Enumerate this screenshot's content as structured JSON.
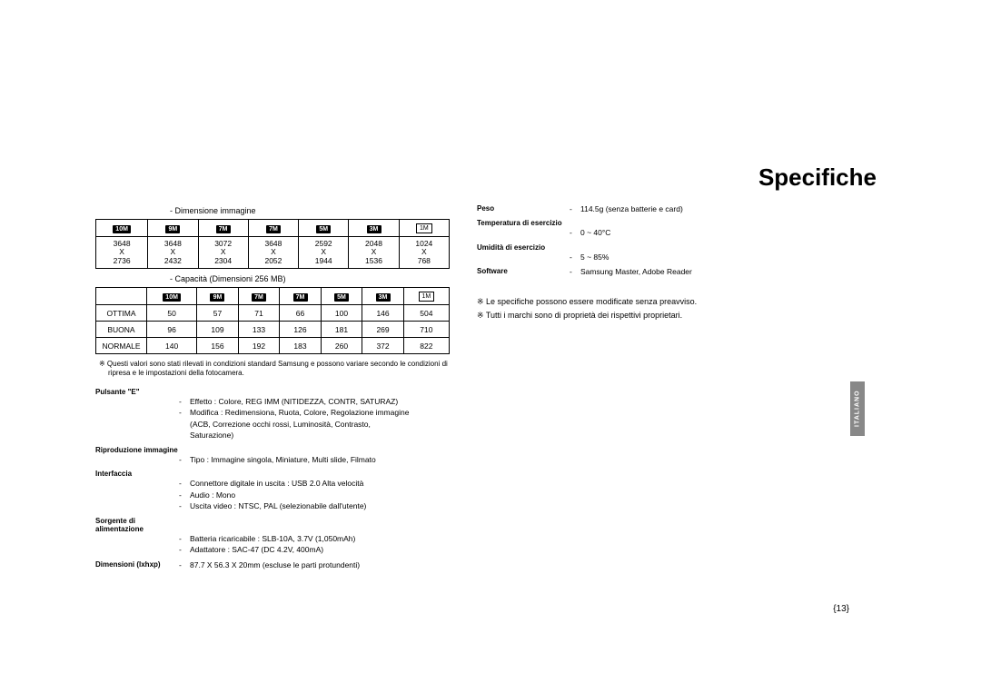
{
  "title": "Specifiche",
  "side_tab": "ITALIANO",
  "page_number": "{13}",
  "table1": {
    "heading": "-   Dimensione immagine",
    "headers": [
      "10M",
      "9M",
      "7M",
      "7M",
      "5M",
      "3M",
      "1M"
    ],
    "rows": [
      [
        "3648",
        "3648",
        "3072",
        "3648",
        "2592",
        "2048",
        "1024"
      ],
      [
        "X",
        "X",
        "X",
        "X",
        "X",
        "X",
        "X"
      ],
      [
        "2736",
        "2432",
        "2304",
        "2052",
        "1944",
        "1536",
        "768"
      ]
    ]
  },
  "table2": {
    "heading": "-   Capacità (Dimensioni 256 MB)",
    "headers": [
      "",
      "10M",
      "9M",
      "7M",
      "7M",
      "5M",
      "3M",
      "1M"
    ],
    "rows": [
      [
        "OTTIMA",
        "50",
        "57",
        "71",
        "66",
        "100",
        "146",
        "504"
      ],
      [
        "BUONA",
        "96",
        "109",
        "133",
        "126",
        "181",
        "269",
        "710"
      ],
      [
        "NORMALE",
        "140",
        "156",
        "192",
        "183",
        "260",
        "372",
        "822"
      ]
    ]
  },
  "table_note": "※ Questi valori sono stati rilevati in condizioni standard Samsung e possono variare secondo le condizioni di ripresa e le impostazioni della fotocamera.",
  "left_specs": [
    {
      "label": "Pulsante \"E\"",
      "lines": [
        "Effetto  :  Colore, REG IMM (NITIDEZZA, CONTR, SATURAZ)",
        "Modifica  :  Redimensiona,  Ruota, Colore, Regolazione immagine",
        "               (ACB,  Correzione occhi rossi,  Luminosità,  Contrasto,",
        "               Saturazione)"
      ]
    },
    {
      "label": "Riproduzione immagine",
      "lines": [
        "Tipo  :  Immagine singola, Miniature, Multi slide, Filmato"
      ]
    },
    {
      "label": "Interfaccia",
      "lines": [
        "Connettore digitale in uscita  :  USB  2.0  Alta velocità",
        "Audio  :  Mono",
        "Uscita video  :  NTSC,  PAL  (selezionabile dall'utente)"
      ]
    },
    {
      "label": "Sorgente di alimentazione",
      "lines": [
        "Batteria ricaricabile  :  SLB-10A,  3.7V  (1,050mAh)",
        "Adattatore  :  SAC-47 (DC  4.2V,  400mA)"
      ]
    },
    {
      "label": "Dimensioni  (lxhxp)",
      "lines": [
        "87.7  X  56.3  X  20mm  (escluse le parti protundenti)"
      ]
    }
  ],
  "right_specs": [
    {
      "label": "Peso",
      "lines": [
        "114.5g  (senza batterie e card)"
      ]
    },
    {
      "label": "Temperatura di esercizio",
      "lines": [
        "0  ~  40°C"
      ]
    },
    {
      "label": "Umidità di esercizio",
      "lines": [
        "5  ~  85%"
      ]
    },
    {
      "label": "Software",
      "lines": [
        "Samsung Master,  Adobe Reader"
      ]
    }
  ],
  "right_bullets": [
    "※  Le specifiche possono essere modificate senza preavviso.",
    "※  Tutti i marchi sono di proprietà dei rispettivi proprietari."
  ]
}
